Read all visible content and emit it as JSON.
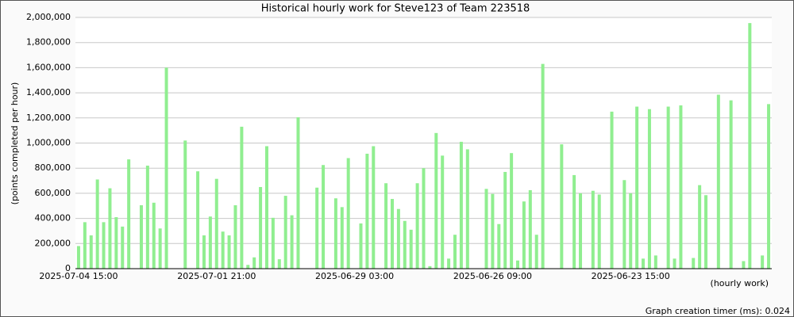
{
  "chart_data": {
    "type": "bar",
    "title": "Historical hourly work for Steve123 of Team 223518",
    "y_label": "(points completed per hour)",
    "x_label": "(hourly work)",
    "footer": "Graph creation timer (ms): 0.024",
    "color": "#90ee90",
    "grid": true,
    "categories": [
      "2025-07-04 15:00",
      null,
      null,
      null,
      null,
      null,
      null,
      null,
      null,
      null,
      null,
      null,
      null,
      null,
      null,
      null,
      null,
      null,
      null,
      null,
      null,
      null,
      "2025-07-01 21:00",
      null,
      null,
      null,
      null,
      null,
      null,
      null,
      null,
      null,
      null,
      null,
      null,
      null,
      null,
      null,
      null,
      null,
      null,
      null,
      null,
      null,
      "2025-06-29 03:00",
      null,
      null,
      null,
      null,
      null,
      null,
      null,
      null,
      null,
      null,
      null,
      null,
      null,
      null,
      null,
      null,
      null,
      null,
      null,
      null,
      null,
      "2025-06-26 09:00",
      null,
      null,
      null,
      null,
      null,
      null,
      null,
      null,
      null,
      null,
      null,
      null,
      null,
      null,
      null,
      null,
      null,
      null,
      null,
      null,
      null,
      "2025-06-23 15:00",
      null,
      null,
      null,
      null,
      null,
      null,
      null,
      null,
      null,
      null,
      null,
      null,
      null,
      null,
      null,
      null,
      null,
      null,
      null,
      null,
      null,
      null
    ],
    "values": [
      180000,
      370000,
      265000,
      710000,
      370000,
      640000,
      410000,
      335000,
      870000,
      0,
      505000,
      820000,
      525000,
      320000,
      1600000,
      0,
      0,
      1020000,
      0,
      775000,
      265000,
      415000,
      715000,
      295000,
      265000,
      505000,
      1130000,
      30000,
      90000,
      650000,
      975000,
      405000,
      75000,
      580000,
      425000,
      1205000,
      0,
      0,
      645000,
      825000,
      0,
      560000,
      490000,
      880000,
      0,
      360000,
      915000,
      975000,
      0,
      680000,
      555000,
      475000,
      380000,
      310000,
      680000,
      800000,
      20000,
      1080000,
      900000,
      80000,
      270000,
      1010000,
      950000,
      0,
      0,
      635000,
      595000,
      355000,
      770000,
      920000,
      65000,
      535000,
      625000,
      270000,
      1630000,
      0,
      0,
      990000,
      0,
      745000,
      600000,
      0,
      620000,
      590000,
      0,
      1250000,
      0,
      705000,
      600000,
      1290000,
      80000,
      1270000,
      105000,
      0,
      1290000,
      80000,
      1300000,
      0,
      85000,
      665000,
      585000,
      0,
      1385000,
      0,
      1340000,
      0,
      60000,
      1955000,
      0,
      105000,
      1310000
    ],
    "ylim": [
      0,
      2000000
    ],
    "yticks": [
      0,
      {
        "value": 200000,
        "label": "200,000"
      },
      {
        "value": 400000,
        "label": "400,000"
      },
      {
        "value": 600000,
        "label": "600,000"
      },
      {
        "value": 800000,
        "label": "800,000"
      },
      {
        "value": 1000000,
        "label": "1,000,000"
      },
      {
        "value": 1200000,
        "label": "1,200,000"
      },
      {
        "value": 1400000,
        "label": "1,400,000"
      },
      {
        "value": 1600000,
        "label": "1,600,000"
      },
      {
        "value": 1800000,
        "label": "1,800,000"
      },
      {
        "value": 2000000,
        "label": "2,000,000"
      }
    ]
  }
}
